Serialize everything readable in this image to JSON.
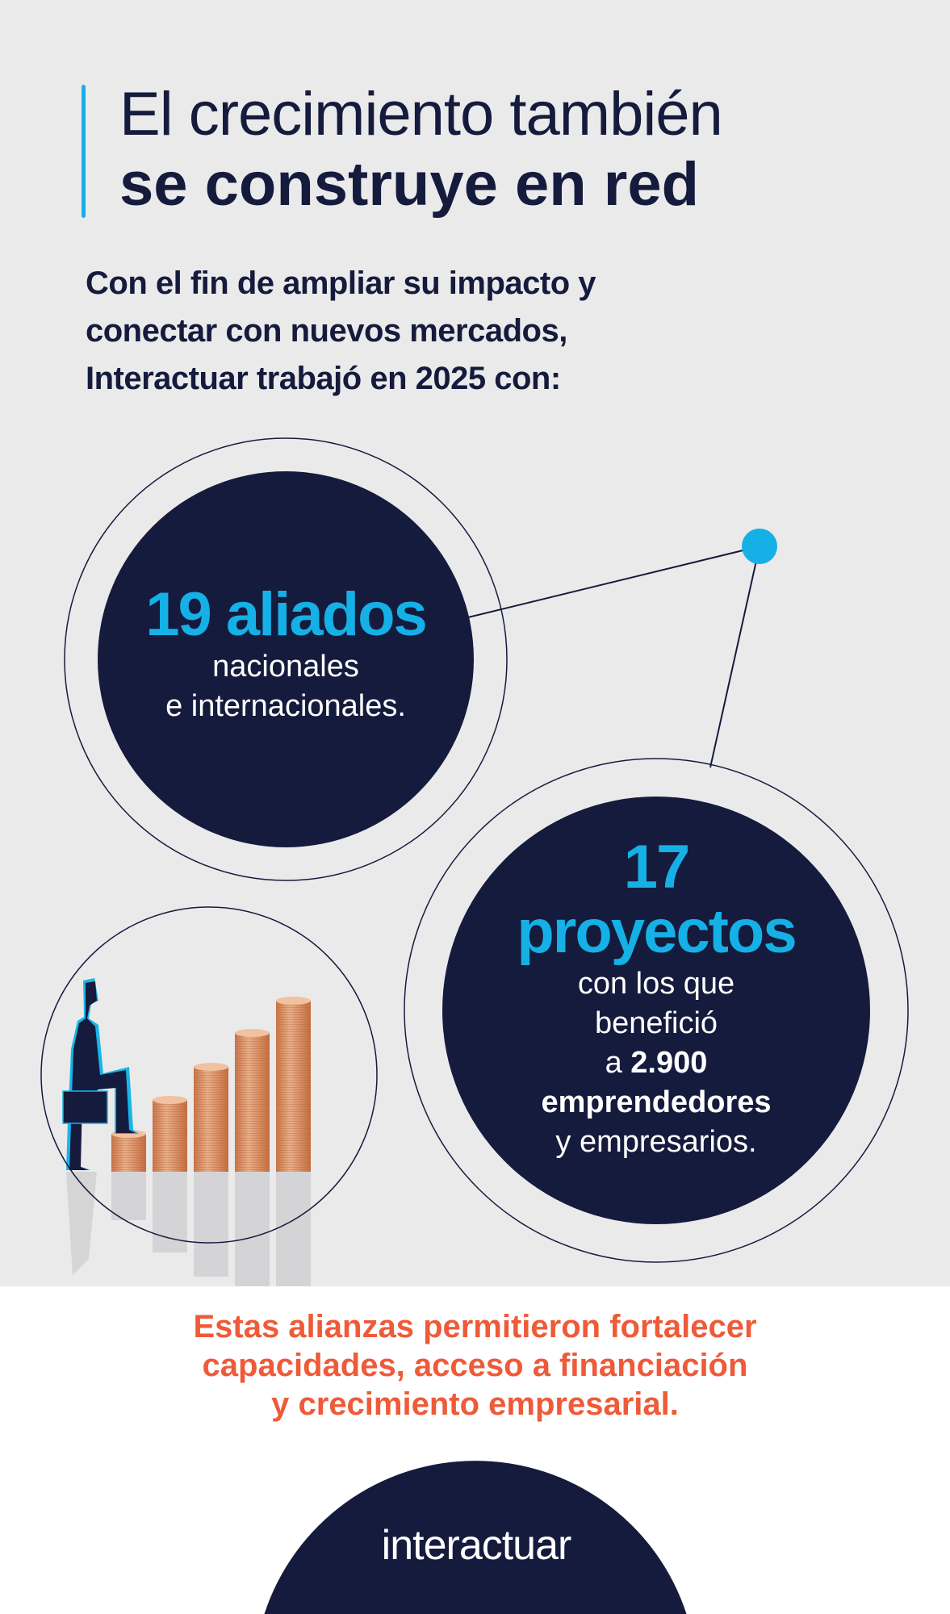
{
  "header": {
    "title_line1": "El crecimiento también",
    "title_line2": "se construye en red"
  },
  "intro": {
    "lines": [
      "Con el fin de ampliar su impacto y",
      "conectar con nuevos mercados,",
      "Interactuar trabajó en 2025 con:"
    ]
  },
  "stat_allies": {
    "value": "19 aliados",
    "line1": "nacionales",
    "line2": "e internacionales."
  },
  "stat_projects": {
    "number": "17",
    "label": "proyectos",
    "line1": "con los que",
    "line2": "benefició",
    "line3_prefix": "a",
    "line3_value": "2.900",
    "line4": "emprendedores",
    "line5": "y empresarios."
  },
  "closing": {
    "lines": [
      "Estas alianzas permitieron fortalecer",
      "capacidades, acceso a financiación",
      "y crecimiento empresarial."
    ]
  },
  "footer": {
    "logo_text": "interactuar"
  },
  "colors": {
    "navy": "#151b3d",
    "cyan": "#15b0e6",
    "orange": "#ef5a38",
    "background": "#ebeaeb",
    "coin": "#d9895a"
  },
  "illustration": "businessman-climbing-coin-stacks"
}
